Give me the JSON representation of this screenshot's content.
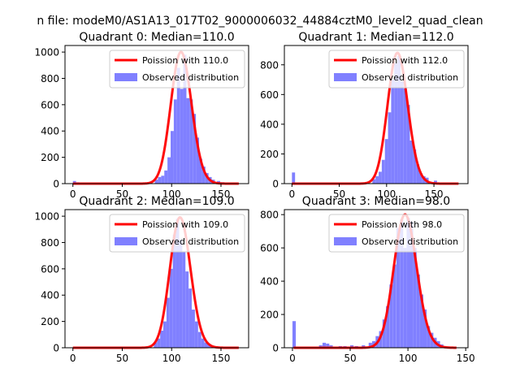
{
  "figure": {
    "suptitle": "n file: modeM0/AS1A13_017T02_9000006032_44884cztM0_level2_quad_clean"
  },
  "chart_data": [
    {
      "type": "bar",
      "title": "Quadrant 0: Median=110.0",
      "xlim": [
        -8,
        178
      ],
      "ylim": [
        0,
        1050
      ],
      "xticks": [
        0,
        50,
        100,
        150
      ],
      "yticks": [
        0,
        200,
        400,
        600,
        800,
        1000
      ],
      "grid": false,
      "legend_position": "upper right",
      "legend": [
        {
          "label": "Poission with 110.0",
          "color": "#ff0000",
          "kind": "line"
        },
        {
          "label": "Observed distribution",
          "color": "#8080ff",
          "kind": "patch"
        }
      ],
      "bin_width": 3.2,
      "histogram": {
        "name": "Observed distribution",
        "color": "#8080ff",
        "bins": [
          [
            0,
            20
          ],
          [
            3.2,
            10
          ],
          [
            83,
            30
          ],
          [
            86.2,
            50
          ],
          [
            89.4,
            60
          ],
          [
            92.6,
            100
          ],
          [
            95.8,
            200
          ],
          [
            99,
            400
          ],
          [
            102.2,
            640
          ],
          [
            105.4,
            880
          ],
          [
            108.6,
            720
          ],
          [
            111.8,
            980
          ],
          [
            115,
            650
          ],
          [
            118.2,
            640
          ],
          [
            121.4,
            530
          ],
          [
            124.6,
            350
          ],
          [
            127.8,
            190
          ],
          [
            131,
            130
          ],
          [
            134.2,
            80
          ],
          [
            137.4,
            50
          ],
          [
            140.6,
            30
          ],
          [
            146,
            20
          ],
          [
            150,
            10
          ]
        ]
      },
      "poisson": {
        "name": "Poission with 110.0",
        "lambda": 110.0,
        "peak": 1000,
        "color": "#ff0000"
      }
    },
    {
      "type": "bar",
      "title": "Quadrant 1: Median=112.0",
      "xlim": [
        -8,
        186
      ],
      "ylim": [
        0,
        930
      ],
      "xticks": [
        0,
        50,
        100,
        150
      ],
      "yticks": [
        0,
        200,
        400,
        600,
        800
      ],
      "grid": false,
      "legend_position": "upper right",
      "legend": [
        {
          "label": "Poission with 112.0",
          "color": "#ff0000",
          "kind": "line"
        },
        {
          "label": "Observed distribution",
          "color": "#8080ff",
          "kind": "patch"
        }
      ],
      "bin_width": 3.3,
      "histogram": {
        "name": "Observed distribution",
        "color": "#8080ff",
        "bins": [
          [
            0,
            75
          ],
          [
            85,
            30
          ],
          [
            88.3,
            50
          ],
          [
            91.6,
            80
          ],
          [
            94.9,
            160
          ],
          [
            98.2,
            300
          ],
          [
            101.5,
            480
          ],
          [
            104.8,
            700
          ],
          [
            108.1,
            810
          ],
          [
            111.4,
            860
          ],
          [
            114.7,
            690
          ],
          [
            118,
            640
          ],
          [
            121.3,
            530
          ],
          [
            124.6,
            290
          ],
          [
            127.9,
            230
          ],
          [
            131.2,
            130
          ],
          [
            134.5,
            70
          ],
          [
            137.8,
            50
          ],
          [
            141.1,
            40
          ],
          [
            150,
            20
          ]
        ]
      },
      "poisson": {
        "name": "Poission with 112.0",
        "lambda": 112.0,
        "peak": 880,
        "color": "#ff0000"
      }
    },
    {
      "type": "bar",
      "title": "Quadrant 2: Median=109.0",
      "xlim": [
        -8,
        178
      ],
      "ylim": [
        0,
        1050
      ],
      "xticks": [
        0,
        50,
        100,
        150
      ],
      "yticks": [
        0,
        200,
        400,
        600,
        800,
        1000
      ],
      "grid": false,
      "legend_position": "upper right",
      "legend": [
        {
          "label": "Poission with 109.0",
          "color": "#ff0000",
          "kind": "line"
        },
        {
          "label": "Observed distribution",
          "color": "#8080ff",
          "kind": "patch"
        }
      ],
      "bin_width": 3.2,
      "histogram": {
        "name": "Observed distribution",
        "color": "#8080ff",
        "bins": [
          [
            82,
            40
          ],
          [
            85.2,
            70
          ],
          [
            88.4,
            130
          ],
          [
            91.6,
            200
          ],
          [
            94.8,
            380
          ],
          [
            98,
            600
          ],
          [
            101.2,
            860
          ],
          [
            104.4,
            980
          ],
          [
            107.6,
            820
          ],
          [
            110.8,
            730
          ],
          [
            114,
            580
          ],
          [
            117.2,
            450
          ],
          [
            120.4,
            290
          ],
          [
            123.6,
            200
          ],
          [
            126.8,
            120
          ],
          [
            130,
            70
          ],
          [
            133.2,
            40
          ],
          [
            136.4,
            30
          ],
          [
            139.6,
            15
          ]
        ]
      },
      "poisson": {
        "name": "Poission with 109.0",
        "lambda": 109.0,
        "peak": 990,
        "color": "#ff0000"
      }
    },
    {
      "type": "bar",
      "title": "Quadrant 3: Median=98.0",
      "xlim": [
        -7,
        152
      ],
      "ylim": [
        0,
        830
      ],
      "xticks": [
        0,
        50,
        100,
        150
      ],
      "yticks": [
        0,
        200,
        400,
        600,
        800
      ],
      "grid": false,
      "legend_position": "upper right",
      "legend": [
        {
          "label": "Poission with 98.0",
          "color": "#ff0000",
          "kind": "line"
        },
        {
          "label": "Observed distribution",
          "color": "#8080ff",
          "kind": "patch"
        }
      ],
      "bin_width": 2.9,
      "histogram": {
        "name": "Observed distribution",
        "color": "#8080ff",
        "bins": [
          [
            0,
            160
          ],
          [
            23,
            15
          ],
          [
            26,
            30
          ],
          [
            29,
            25
          ],
          [
            32,
            15
          ],
          [
            40,
            10
          ],
          [
            44,
            10
          ],
          [
            50,
            15
          ],
          [
            54,
            10
          ],
          [
            60,
            15
          ],
          [
            66,
            30
          ],
          [
            69,
            40
          ],
          [
            72,
            70
          ],
          [
            75,
            100
          ],
          [
            78,
            170
          ],
          [
            81,
            250
          ],
          [
            84,
            380
          ],
          [
            87,
            500
          ],
          [
            90,
            720
          ],
          [
            93,
            770
          ],
          [
            95.9,
            600
          ],
          [
            98.8,
            780
          ],
          [
            101.7,
            760
          ],
          [
            104.6,
            600
          ],
          [
            107.5,
            440
          ],
          [
            110.4,
            320
          ],
          [
            113.3,
            230
          ],
          [
            116.2,
            130
          ],
          [
            119.1,
            90
          ],
          [
            122,
            60
          ],
          [
            124.9,
            40
          ],
          [
            127.8,
            20
          ]
        ]
      },
      "poisson": {
        "name": "Poission with 98.0",
        "lambda": 98.0,
        "peak": 800,
        "color": "#ff0000"
      }
    }
  ]
}
